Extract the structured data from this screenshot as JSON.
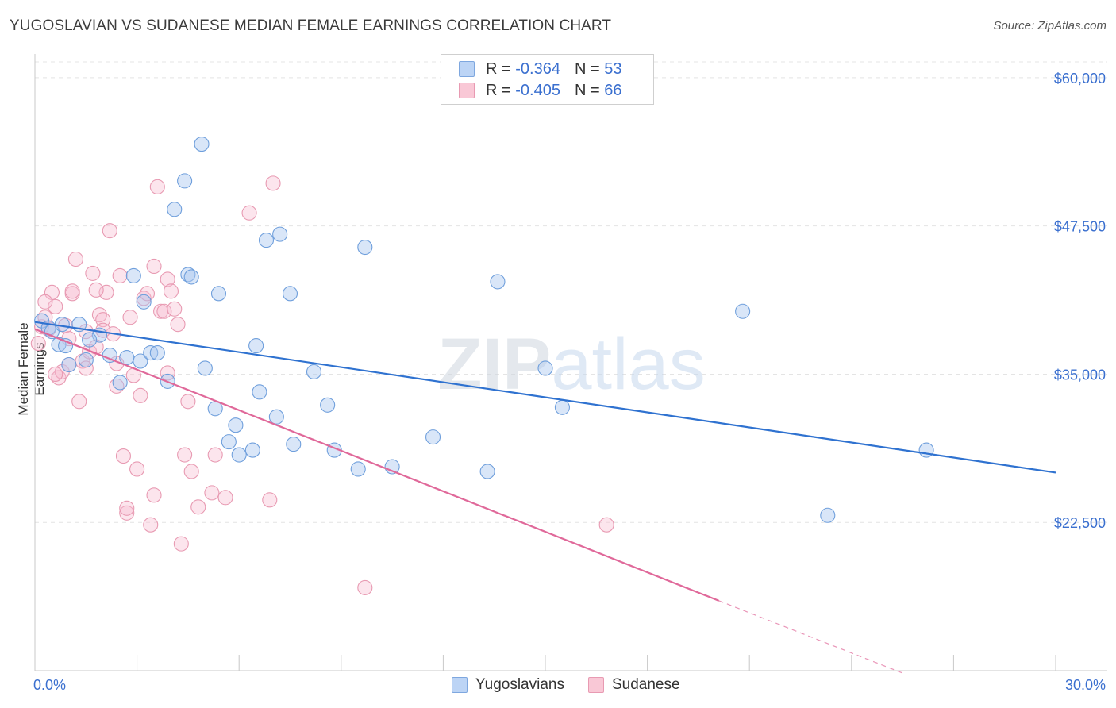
{
  "title": "YUGOSLAVIAN VS SUDANESE MEDIAN FEMALE EARNINGS CORRELATION CHART",
  "source": "Source: ZipAtlas.com",
  "watermark": "ZIPatlas",
  "legend": {
    "rows": [
      {
        "r_label": "R =",
        "r_value": "-0.364",
        "n_label": "N =",
        "n_value": "53"
      },
      {
        "r_label": "R =",
        "r_value": "-0.405",
        "n_label": "N =",
        "n_value": "66"
      }
    ],
    "series_names": [
      "Yugoslavians",
      "Sudanese"
    ]
  },
  "chart_data": {
    "type": "scatter",
    "title": "YUGOSLAVIAN VS SUDANESE MEDIAN FEMALE EARNINGS CORRELATION CHART",
    "ylabel": "Median Female Earnings",
    "xlim": [
      0,
      30
    ],
    "ylim": [
      10000,
      62000
    ],
    "x_tick_labels": [
      "0.0%",
      "30.0%"
    ],
    "y_ticks": [
      22500,
      35000,
      47500,
      60000
    ],
    "y_tick_labels": [
      "$22,500",
      "$35,000",
      "$47,500",
      "$60,000"
    ],
    "grid": true,
    "legend_position": "top-center",
    "colors": {
      "Yugoslavians": "#4a86d8",
      "Sudanese": "#e8769c"
    },
    "series": [
      {
        "name": "Yugoslavians",
        "trend": {
          "x0": 0,
          "y0": 39400,
          "x1": 30,
          "y1": 26700
        },
        "points": [
          [
            0.2,
            39500
          ],
          [
            0.4,
            38900
          ],
          [
            0.5,
            38600
          ],
          [
            0.8,
            39200
          ],
          [
            0.7,
            37500
          ],
          [
            0.9,
            37400
          ],
          [
            1.0,
            35800
          ],
          [
            1.3,
            39200
          ],
          [
            1.5,
            36200
          ],
          [
            1.9,
            38300
          ],
          [
            1.6,
            37900
          ],
          [
            2.2,
            36600
          ],
          [
            2.5,
            34300
          ],
          [
            2.7,
            36400
          ],
          [
            2.9,
            43300
          ],
          [
            3.1,
            36100
          ],
          [
            3.2,
            41100
          ],
          [
            3.4,
            36800
          ],
          [
            3.6,
            36800
          ],
          [
            3.9,
            34400
          ],
          [
            4.1,
            48900
          ],
          [
            4.4,
            51300
          ],
          [
            4.5,
            43400
          ],
          [
            4.6,
            43200
          ],
          [
            4.9,
            54400
          ],
          [
            5.0,
            35500
          ],
          [
            5.3,
            32100
          ],
          [
            5.4,
            41800
          ],
          [
            5.7,
            29300
          ],
          [
            5.9,
            30700
          ],
          [
            6.0,
            28200
          ],
          [
            6.4,
            28600
          ],
          [
            6.5,
            37400
          ],
          [
            6.6,
            33500
          ],
          [
            6.8,
            46300
          ],
          [
            7.1,
            31400
          ],
          [
            7.2,
            46800
          ],
          [
            7.5,
            41800
          ],
          [
            7.6,
            29100
          ],
          [
            8.2,
            35200
          ],
          [
            8.6,
            32400
          ],
          [
            8.8,
            28600
          ],
          [
            9.5,
            27000
          ],
          [
            9.7,
            45700
          ],
          [
            10.5,
            27200
          ],
          [
            11.7,
            29700
          ],
          [
            13.3,
            26800
          ],
          [
            13.6,
            42800
          ],
          [
            15.0,
            35500
          ],
          [
            15.5,
            32200
          ],
          [
            20.8,
            40300
          ],
          [
            23.3,
            23100
          ],
          [
            26.2,
            28600
          ]
        ]
      },
      {
        "name": "Sudanese",
        "trend": {
          "x0": 0,
          "y0": 38800,
          "x1": 20.1,
          "y1": 15900,
          "dash_to_x": 25.5,
          "dash_to_y": 9800
        },
        "points": [
          [
            0.1,
            37600
          ],
          [
            0.2,
            39000
          ],
          [
            0.3,
            39800
          ],
          [
            0.4,
            38800
          ],
          [
            0.5,
            41900
          ],
          [
            0.6,
            40700
          ],
          [
            0.7,
            34700
          ],
          [
            0.8,
            35200
          ],
          [
            0.9,
            39100
          ],
          [
            1.0,
            38000
          ],
          [
            1.1,
            41800
          ],
          [
            1.2,
            44700
          ],
          [
            1.3,
            32700
          ],
          [
            1.4,
            36100
          ],
          [
            1.5,
            35500
          ],
          [
            1.6,
            36900
          ],
          [
            1.7,
            43500
          ],
          [
            1.8,
            37300
          ],
          [
            1.9,
            40000
          ],
          [
            2.0,
            39600
          ],
          [
            2.1,
            41900
          ],
          [
            2.2,
            47100
          ],
          [
            2.3,
            38400
          ],
          [
            2.4,
            35900
          ],
          [
            2.5,
            43300
          ],
          [
            2.6,
            28100
          ],
          [
            2.7,
            23300
          ],
          [
            2.8,
            39800
          ],
          [
            2.9,
            34900
          ],
          [
            3.0,
            27000
          ],
          [
            3.1,
            33200
          ],
          [
            3.2,
            41400
          ],
          [
            3.3,
            41800
          ],
          [
            3.4,
            22300
          ],
          [
            3.5,
            24800
          ],
          [
            3.6,
            50800
          ],
          [
            3.7,
            40300
          ],
          [
            3.8,
            40300
          ],
          [
            3.9,
            43000
          ],
          [
            4.0,
            42000
          ],
          [
            4.1,
            40500
          ],
          [
            4.2,
            39200
          ],
          [
            4.3,
            20700
          ],
          [
            4.4,
            28200
          ],
          [
            4.5,
            32700
          ],
          [
            4.6,
            26800
          ],
          [
            4.8,
            23800
          ],
          [
            5.2,
            25000
          ],
          [
            5.3,
            28200
          ],
          [
            5.6,
            24600
          ],
          [
            6.3,
            48600
          ],
          [
            6.9,
            24400
          ],
          [
            7.0,
            51100
          ],
          [
            9.7,
            17000
          ],
          [
            16.8,
            22300
          ],
          [
            0.6,
            35000
          ],
          [
            1.0,
            35800
          ],
          [
            1.5,
            38600
          ],
          [
            1.1,
            42000
          ],
          [
            2.7,
            23700
          ],
          [
            3.9,
            35100
          ],
          [
            2.4,
            34000
          ],
          [
            0.3,
            41100
          ],
          [
            1.8,
            42100
          ],
          [
            2.0,
            38700
          ],
          [
            3.5,
            44100
          ]
        ]
      }
    ]
  },
  "axis": {
    "x_left_label": "0.0%",
    "x_right_label": "30.0%",
    "y_tick_labels": [
      "$60,000",
      "$47,500",
      "$35,000",
      "$22,500"
    ]
  }
}
